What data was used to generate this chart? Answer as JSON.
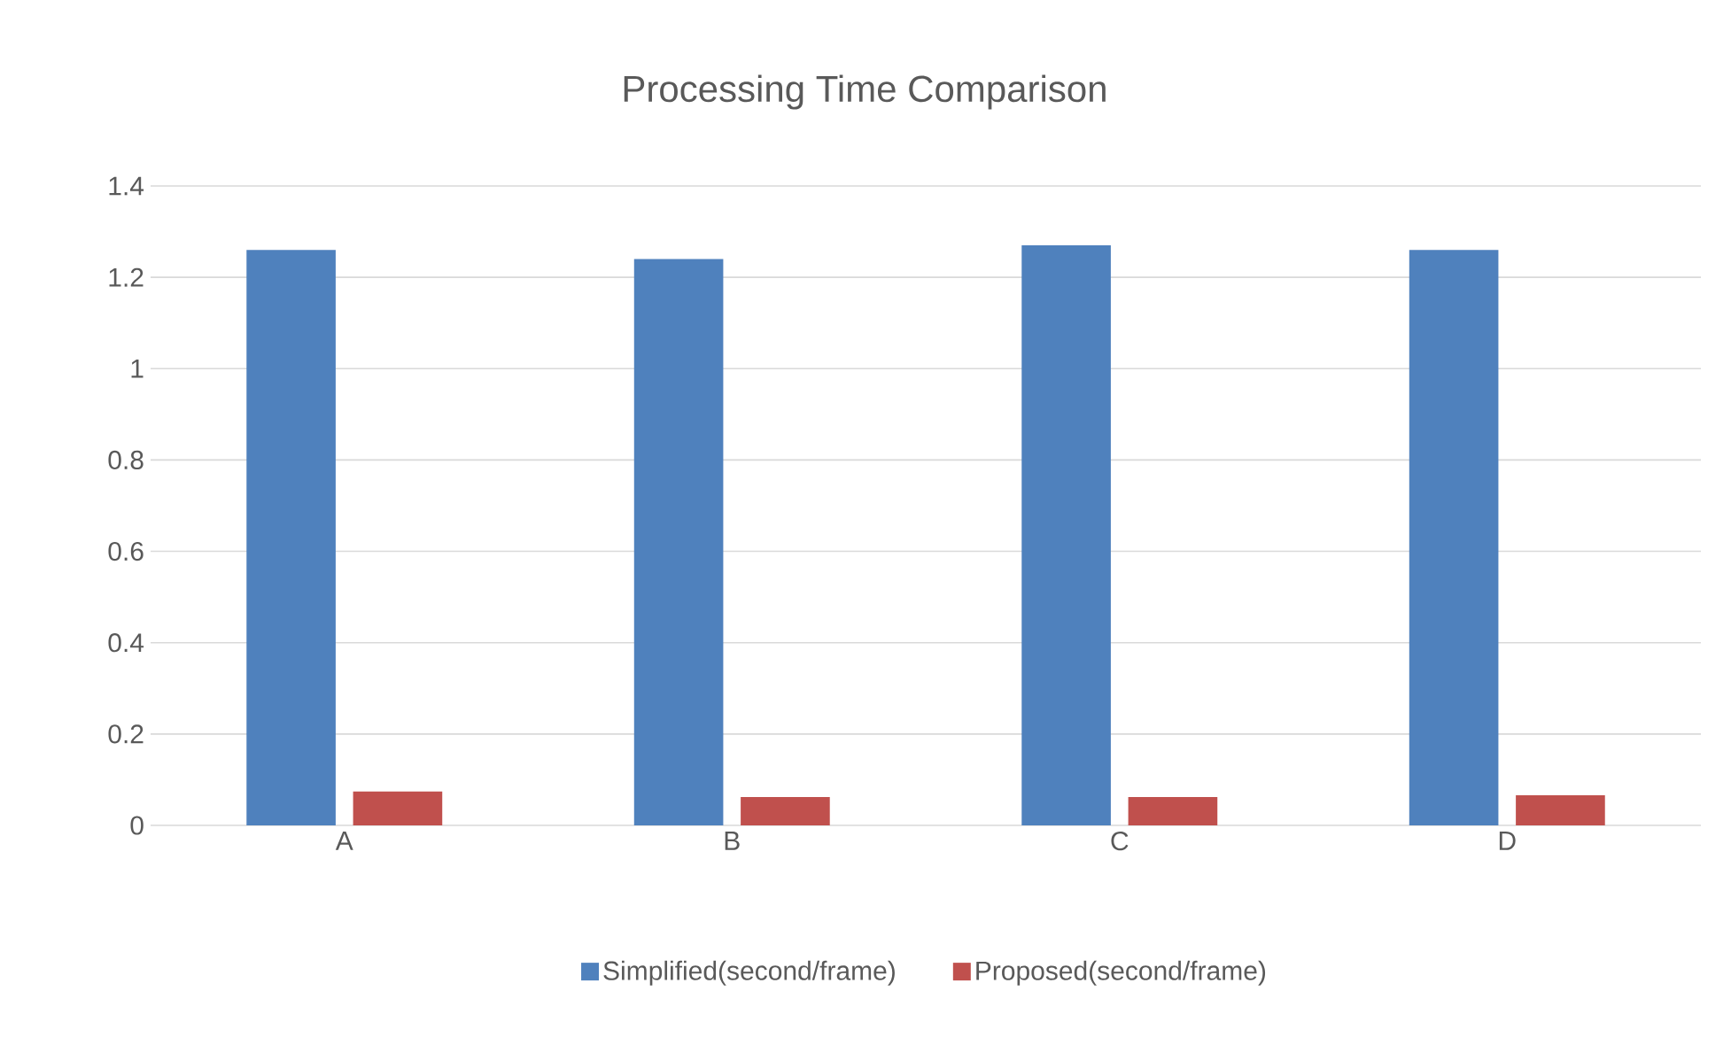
{
  "chart_data": {
    "type": "bar",
    "title": "Processing Time Comparison",
    "categories": [
      "A",
      "B",
      "C",
      "D"
    ],
    "series": [
      {
        "name": "Simplified(second/frame)",
        "color": "#4f81bd",
        "values": [
          1.26,
          1.24,
          1.27,
          1.26
        ]
      },
      {
        "name": "Proposed(second/frame)",
        "color": "#c0504d",
        "values": [
          0.074,
          0.062,
          0.062,
          0.066
        ]
      }
    ],
    "ylim": [
      0,
      1.4
    ],
    "yticks": [
      0,
      0.2,
      0.4,
      0.6,
      0.8,
      1,
      1.2,
      1.4
    ],
    "grid": "y",
    "legend": "bottom"
  }
}
